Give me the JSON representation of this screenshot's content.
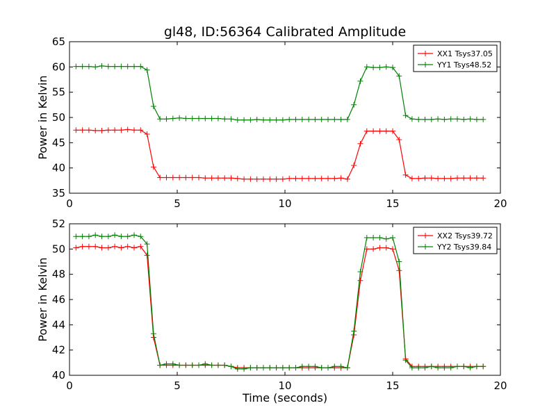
{
  "title": "gl48, ID:56364 Calibrated Amplitude",
  "chart_data": [
    {
      "type": "line",
      "ylabel": "Power in Kelvin",
      "xlabel": "",
      "xlim": [
        0,
        20
      ],
      "ylim": [
        35,
        65
      ],
      "xticks": [
        0,
        5,
        10,
        15,
        20
      ],
      "yticks": [
        35,
        40,
        45,
        50,
        55,
        60,
        65
      ],
      "legend": "top-right",
      "x": [
        0.3,
        0.6,
        0.9,
        1.2,
        1.5,
        1.8,
        2.1,
        2.4,
        2.7,
        3.0,
        3.3,
        3.6,
        3.9,
        4.2,
        4.5,
        4.8,
        5.1,
        5.4,
        5.7,
        6.0,
        6.3,
        6.6,
        6.9,
        7.2,
        7.5,
        7.8,
        8.1,
        8.4,
        8.7,
        9.0,
        9.3,
        9.6,
        9.9,
        10.2,
        10.5,
        10.8,
        11.1,
        11.4,
        11.7,
        12.0,
        12.3,
        12.6,
        12.9,
        13.2,
        13.5,
        13.8,
        14.1,
        14.4,
        14.7,
        15.0,
        15.3,
        15.6,
        15.9,
        16.2,
        16.5,
        16.8,
        17.1,
        17.4,
        17.7,
        18.0,
        18.3,
        18.6,
        18.9,
        19.2
      ],
      "series": [
        {
          "name": "XX1 Tsys37.05",
          "color": "#ff0000",
          "values": [
            47.5,
            47.5,
            47.5,
            47.4,
            47.4,
            47.5,
            47.5,
            47.5,
            47.6,
            47.5,
            47.5,
            46.7,
            40.2,
            38.1,
            38.1,
            38.1,
            38.1,
            38.1,
            38.1,
            38.1,
            38.0,
            38.0,
            38.0,
            38.0,
            38.0,
            37.9,
            37.8,
            37.8,
            37.8,
            37.8,
            37.8,
            37.8,
            37.8,
            37.9,
            37.9,
            37.9,
            37.9,
            37.9,
            37.9,
            37.9,
            37.9,
            38.0,
            37.8,
            40.5,
            44.8,
            47.3,
            47.3,
            47.3,
            47.3,
            47.3,
            45.6,
            38.6,
            37.9,
            37.9,
            38.0,
            38.0,
            37.9,
            37.9,
            37.9,
            38.0,
            38.0,
            38.0,
            38.0,
            38.0
          ]
        },
        {
          "name": "YY1 Tsys48.52",
          "color": "#008000",
          "values": [
            60.1,
            60.1,
            60.1,
            60.0,
            60.2,
            60.1,
            60.1,
            60.1,
            60.1,
            60.1,
            60.1,
            59.4,
            52.2,
            49.7,
            49.7,
            49.8,
            49.9,
            49.8,
            49.8,
            49.8,
            49.8,
            49.8,
            49.8,
            49.7,
            49.7,
            49.5,
            49.5,
            49.5,
            49.6,
            49.5,
            49.5,
            49.5,
            49.5,
            49.6,
            49.6,
            49.6,
            49.6,
            49.6,
            49.6,
            49.6,
            49.6,
            49.6,
            49.6,
            52.5,
            57.2,
            60.0,
            59.9,
            59.9,
            60.0,
            59.9,
            58.2,
            50.4,
            49.7,
            49.6,
            49.6,
            49.6,
            49.7,
            49.6,
            49.7,
            49.7,
            49.6,
            49.7,
            49.6,
            49.6
          ]
        }
      ]
    },
    {
      "type": "line",
      "ylabel": "Power in Kelvin",
      "xlabel": "Time (seconds)",
      "xlim": [
        0,
        20
      ],
      "ylim": [
        40,
        52
      ],
      "xticks": [
        0,
        5,
        10,
        15,
        20
      ],
      "yticks": [
        40,
        42,
        44,
        46,
        48,
        50,
        52
      ],
      "legend": "top-right",
      "x": [
        0.3,
        0.6,
        0.9,
        1.2,
        1.5,
        1.8,
        2.1,
        2.4,
        2.7,
        3.0,
        3.3,
        3.6,
        3.9,
        4.2,
        4.5,
        4.8,
        5.1,
        5.4,
        5.7,
        6.0,
        6.3,
        6.6,
        6.9,
        7.2,
        7.5,
        7.8,
        8.1,
        8.4,
        8.7,
        9.0,
        9.3,
        9.6,
        9.9,
        10.2,
        10.5,
        10.8,
        11.1,
        11.4,
        11.7,
        12.0,
        12.3,
        12.6,
        12.9,
        13.2,
        13.5,
        13.8,
        14.1,
        14.4,
        14.7,
        15.0,
        15.3,
        15.6,
        15.9,
        16.2,
        16.5,
        16.8,
        17.1,
        17.4,
        17.7,
        18.0,
        18.3,
        18.6,
        18.9,
        19.2
      ],
      "series": [
        {
          "name": "XX2 Tsys39.72",
          "color": "#ff0000",
          "values": [
            50.1,
            50.2,
            50.2,
            50.2,
            50.1,
            50.1,
            50.2,
            50.1,
            50.2,
            50.1,
            50.2,
            49.5,
            43.0,
            40.8,
            40.8,
            40.8,
            40.8,
            40.8,
            40.8,
            40.8,
            40.8,
            40.8,
            40.8,
            40.8,
            40.7,
            40.6,
            40.6,
            40.6,
            40.6,
            40.6,
            40.6,
            40.6,
            40.6,
            40.6,
            40.6,
            40.6,
            40.6,
            40.6,
            40.6,
            40.6,
            40.6,
            40.6,
            40.6,
            43.2,
            47.5,
            50.0,
            50.0,
            50.1,
            50.1,
            50.0,
            48.3,
            41.3,
            40.7,
            40.7,
            40.7,
            40.7,
            40.7,
            40.7,
            40.7,
            40.7,
            40.7,
            40.7,
            40.7,
            40.7
          ]
        },
        {
          "name": "YY2 Tsys39.84",
          "color": "#008000",
          "values": [
            51.0,
            51.0,
            51.0,
            51.1,
            51.0,
            51.0,
            51.1,
            51.0,
            51.0,
            51.1,
            51.0,
            50.4,
            43.3,
            40.8,
            40.9,
            40.9,
            40.8,
            40.8,
            40.8,
            40.8,
            40.9,
            40.8,
            40.8,
            40.8,
            40.7,
            40.5,
            40.5,
            40.6,
            40.6,
            40.6,
            40.6,
            40.6,
            40.6,
            40.6,
            40.6,
            40.7,
            40.7,
            40.7,
            40.6,
            40.6,
            40.7,
            40.7,
            40.6,
            43.5,
            48.2,
            50.9,
            50.9,
            50.9,
            50.8,
            50.9,
            49.0,
            41.2,
            40.6,
            40.6,
            40.6,
            40.7,
            40.6,
            40.6,
            40.6,
            40.7,
            40.7,
            40.6,
            40.7,
            40.7
          ]
        }
      ]
    }
  ]
}
